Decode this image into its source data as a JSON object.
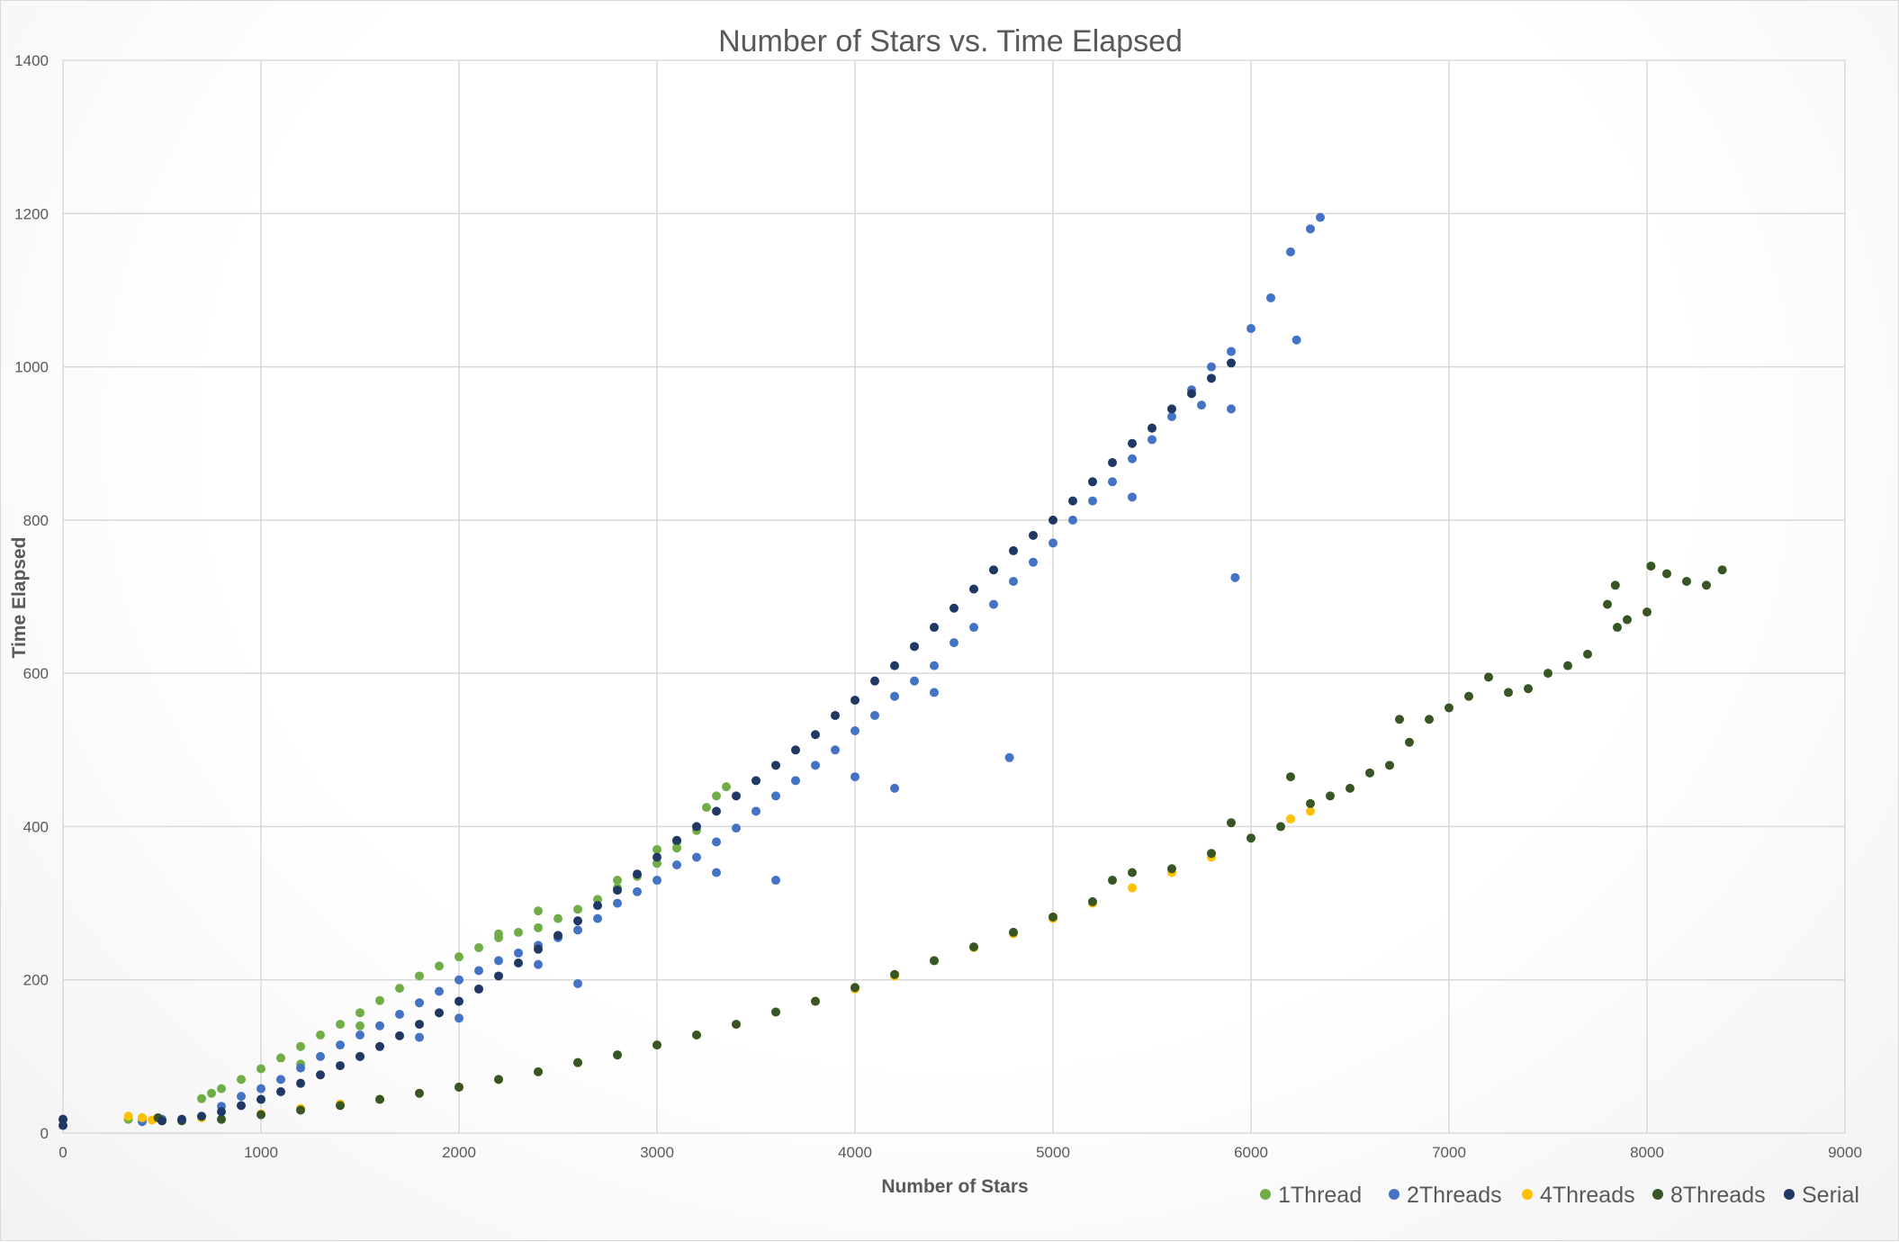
{
  "chart_data": {
    "type": "scatter",
    "title": "Number of Stars vs. Time Elapsed",
    "xlabel": "Number of Stars",
    "ylabel": "Time Elapsed",
    "xlim": [
      0,
      9000
    ],
    "ylim": [
      0,
      1400
    ],
    "xticks": [
      0,
      1000,
      2000,
      3000,
      4000,
      5000,
      6000,
      7000,
      8000,
      9000
    ],
    "yticks": [
      0,
      200,
      400,
      600,
      800,
      1000,
      1200,
      1400
    ],
    "grid": true,
    "legend_position": "bottom-right",
    "series": [
      {
        "name": "1Thread",
        "color": "#70ad47",
        "points": [
          [
            330,
            18
          ],
          [
            400,
            20
          ],
          [
            700,
            45
          ],
          [
            750,
            52
          ],
          [
            800,
            58
          ],
          [
            900,
            70
          ],
          [
            1000,
            84
          ],
          [
            1100,
            98
          ],
          [
            1200,
            113
          ],
          [
            1300,
            128
          ],
          [
            1400,
            142
          ],
          [
            1500,
            157
          ],
          [
            1600,
            173
          ],
          [
            1700,
            189
          ],
          [
            1800,
            205
          ],
          [
            1900,
            218
          ],
          [
            2000,
            230
          ],
          [
            2100,
            242
          ],
          [
            2200,
            255
          ],
          [
            2300,
            262
          ],
          [
            2400,
            268
          ],
          [
            2500,
            280
          ],
          [
            2600,
            292
          ],
          [
            2700,
            305
          ],
          [
            2800,
            320
          ],
          [
            2900,
            335
          ],
          [
            3000,
            352
          ],
          [
            3100,
            372
          ],
          [
            3200,
            395
          ],
          [
            3250,
            425
          ],
          [
            3300,
            440
          ],
          [
            3350,
            452
          ],
          [
            3000,
            370
          ],
          [
            3100,
            380
          ],
          [
            2800,
            330
          ],
          [
            2400,
            290
          ],
          [
            2200,
            260
          ],
          [
            1200,
            90
          ],
          [
            1500,
            140
          ],
          [
            1800,
            170
          ]
        ]
      },
      {
        "name": "2Threads",
        "color": "#4472c4",
        "points": [
          [
            0,
            18
          ],
          [
            400,
            15
          ],
          [
            500,
            18
          ],
          [
            800,
            35
          ],
          [
            900,
            48
          ],
          [
            1000,
            58
          ],
          [
            1100,
            70
          ],
          [
            1200,
            85
          ],
          [
            1300,
            100
          ],
          [
            1400,
            115
          ],
          [
            1500,
            128
          ],
          [
            1600,
            140
          ],
          [
            1700,
            155
          ],
          [
            1800,
            170
          ],
          [
            1900,
            185
          ],
          [
            2000,
            200
          ],
          [
            2100,
            212
          ],
          [
            2200,
            225
          ],
          [
            2300,
            235
          ],
          [
            2400,
            245
          ],
          [
            2500,
            255
          ],
          [
            2600,
            265
          ],
          [
            2700,
            280
          ],
          [
            2800,
            300
          ],
          [
            2900,
            315
          ],
          [
            3000,
            330
          ],
          [
            3100,
            350
          ],
          [
            3200,
            360
          ],
          [
            3300,
            380
          ],
          [
            3400,
            398
          ],
          [
            3500,
            420
          ],
          [
            3600,
            440
          ],
          [
            3700,
            460
          ],
          [
            3800,
            480
          ],
          [
            3900,
            500
          ],
          [
            4000,
            525
          ],
          [
            4100,
            545
          ],
          [
            4200,
            570
          ],
          [
            4300,
            590
          ],
          [
            4400,
            610
          ],
          [
            4500,
            640
          ],
          [
            4600,
            660
          ],
          [
            4700,
            690
          ],
          [
            4800,
            720
          ],
          [
            4900,
            745
          ],
          [
            5000,
            770
          ],
          [
            5100,
            800
          ],
          [
            5200,
            825
          ],
          [
            5300,
            850
          ],
          [
            5400,
            880
          ],
          [
            5500,
            905
          ],
          [
            5600,
            935
          ],
          [
            5700,
            970
          ],
          [
            5800,
            1000
          ],
          [
            5900,
            1020
          ],
          [
            6000,
            1050
          ],
          [
            6100,
            1090
          ],
          [
            6200,
            1150
          ],
          [
            6300,
            1180
          ],
          [
            6350,
            1195
          ],
          [
            6230,
            1035
          ],
          [
            5900,
            945
          ],
          [
            5750,
            950
          ],
          [
            5400,
            830
          ],
          [
            5920,
            725
          ],
          [
            4780,
            490
          ],
          [
            4400,
            575
          ],
          [
            4200,
            450
          ],
          [
            4000,
            465
          ],
          [
            3600,
            330
          ],
          [
            3300,
            340
          ],
          [
            2600,
            195
          ],
          [
            2400,
            220
          ],
          [
            2000,
            150
          ],
          [
            1800,
            125
          ],
          [
            1500,
            100
          ]
        ]
      },
      {
        "name": "4Threads",
        "color": "#ffc000",
        "points": [
          [
            330,
            22
          ],
          [
            400,
            20
          ],
          [
            450,
            17
          ],
          [
            500,
            16
          ],
          [
            700,
            20
          ],
          [
            1000,
            25
          ],
          [
            1200,
            32
          ],
          [
            1400,
            38
          ],
          [
            1600,
            44
          ],
          [
            1800,
            52
          ],
          [
            2000,
            60
          ],
          [
            2200,
            70
          ],
          [
            2400,
            80
          ],
          [
            2600,
            92
          ],
          [
            2800,
            102
          ],
          [
            3000,
            115
          ],
          [
            3200,
            128
          ],
          [
            3400,
            142
          ],
          [
            3600,
            158
          ],
          [
            3800,
            172
          ],
          [
            4000,
            188
          ],
          [
            4200,
            205
          ],
          [
            4400,
            225
          ],
          [
            4600,
            242
          ],
          [
            4800,
            260
          ],
          [
            5000,
            280
          ],
          [
            5200,
            300
          ],
          [
            5400,
            320
          ],
          [
            5600,
            340
          ],
          [
            5800,
            360
          ],
          [
            6000,
            385
          ],
          [
            6200,
            410
          ],
          [
            6300,
            420
          ]
        ]
      },
      {
        "name": "8Threads",
        "color": "#375623",
        "points": [
          [
            480,
            20
          ],
          [
            600,
            16
          ],
          [
            800,
            18
          ],
          [
            1000,
            24
          ],
          [
            1200,
            30
          ],
          [
            1400,
            36
          ],
          [
            1600,
            44
          ],
          [
            1800,
            52
          ],
          [
            2000,
            60
          ],
          [
            2200,
            70
          ],
          [
            2400,
            80
          ],
          [
            2600,
            92
          ],
          [
            2800,
            102
          ],
          [
            3000,
            115
          ],
          [
            3200,
            128
          ],
          [
            3400,
            142
          ],
          [
            3600,
            158
          ],
          [
            3800,
            172
          ],
          [
            4000,
            190
          ],
          [
            4200,
            207
          ],
          [
            4400,
            225
          ],
          [
            4600,
            243
          ],
          [
            4800,
            262
          ],
          [
            5000,
            282
          ],
          [
            5200,
            302
          ],
          [
            5300,
            330
          ],
          [
            5400,
            340
          ],
          [
            5600,
            345
          ],
          [
            5800,
            365
          ],
          [
            5900,
            405
          ],
          [
            6000,
            385
          ],
          [
            6150,
            400
          ],
          [
            6200,
            465
          ],
          [
            6300,
            430
          ],
          [
            6400,
            440
          ],
          [
            6500,
            450
          ],
          [
            6600,
            470
          ],
          [
            6700,
            480
          ],
          [
            6750,
            540
          ],
          [
            6800,
            510
          ],
          [
            6900,
            540
          ],
          [
            7000,
            555
          ],
          [
            7100,
            570
          ],
          [
            7200,
            595
          ],
          [
            7300,
            575
          ],
          [
            7400,
            580
          ],
          [
            7500,
            600
          ],
          [
            7600,
            610
          ],
          [
            7700,
            625
          ],
          [
            7800,
            690
          ],
          [
            7850,
            660
          ],
          [
            7900,
            670
          ],
          [
            8000,
            680
          ],
          [
            8020,
            740
          ],
          [
            8100,
            730
          ],
          [
            8200,
            720
          ],
          [
            8300,
            715
          ],
          [
            8380,
            735
          ],
          [
            7840,
            715
          ]
        ]
      },
      {
        "name": "Serial",
        "color": "#1f3864",
        "points": [
          [
            0,
            18
          ],
          [
            0,
            10
          ],
          [
            500,
            16
          ],
          [
            600,
            18
          ],
          [
            700,
            22
          ],
          [
            800,
            28
          ],
          [
            900,
            36
          ],
          [
            1000,
            44
          ],
          [
            1100,
            54
          ],
          [
            1200,
            65
          ],
          [
            1300,
            76
          ],
          [
            1400,
            88
          ],
          [
            1500,
            100
          ],
          [
            1600,
            113
          ],
          [
            1700,
            127
          ],
          [
            1800,
            142
          ],
          [
            1900,
            157
          ],
          [
            2000,
            172
          ],
          [
            2100,
            188
          ],
          [
            2200,
            205
          ],
          [
            2300,
            222
          ],
          [
            2400,
            240
          ],
          [
            2500,
            258
          ],
          [
            2600,
            277
          ],
          [
            2700,
            297
          ],
          [
            2800,
            317
          ],
          [
            2900,
            338
          ],
          [
            3000,
            360
          ],
          [
            3100,
            382
          ],
          [
            3200,
            400
          ],
          [
            3300,
            420
          ],
          [
            3400,
            440
          ],
          [
            3500,
            460
          ],
          [
            3600,
            480
          ],
          [
            3700,
            500
          ],
          [
            3800,
            520
          ],
          [
            3900,
            545
          ],
          [
            4000,
            565
          ],
          [
            4100,
            590
          ],
          [
            4200,
            610
          ],
          [
            4300,
            635
          ],
          [
            4400,
            660
          ],
          [
            4500,
            685
          ],
          [
            4600,
            710
          ],
          [
            4700,
            735
          ],
          [
            4800,
            760
          ],
          [
            4900,
            780
          ],
          [
            5000,
            800
          ],
          [
            5100,
            825
          ],
          [
            5200,
            850
          ],
          [
            5300,
            875
          ],
          [
            5400,
            900
          ],
          [
            5500,
            920
          ],
          [
            5600,
            945
          ],
          [
            5700,
            965
          ],
          [
            5800,
            985
          ],
          [
            5900,
            1005
          ]
        ]
      }
    ]
  }
}
